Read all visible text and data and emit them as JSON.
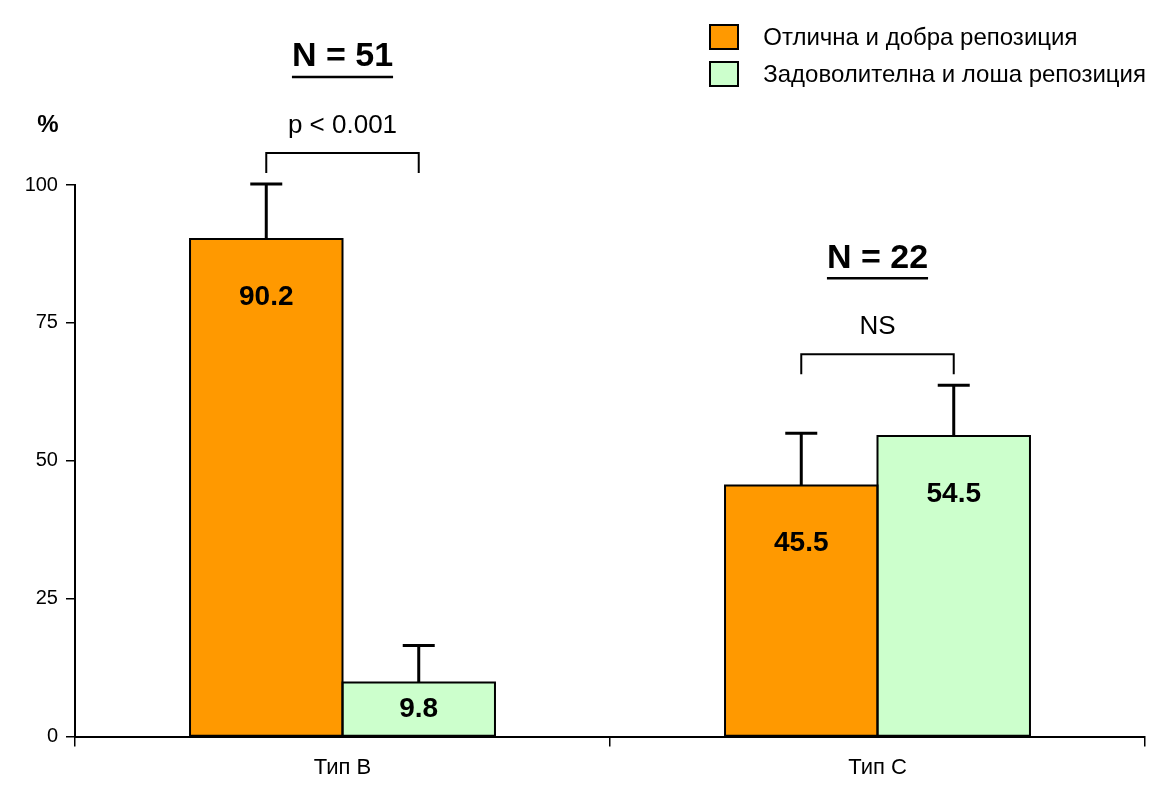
{
  "chart_data": {
    "type": "bar",
    "categories": [
      "Тип B",
      "Тип C"
    ],
    "ylabel": "%",
    "series": [
      {
        "name": "Отлична и добра репозиция",
        "color": "#ff9900",
        "values": [
          90.2,
          45.5
        ],
        "errors": [
          [
            90.2,
            100.2
          ],
          [
            45.5,
            55
          ]
        ]
      },
      {
        "name": "Задоволителна и лоша репозиция",
        "color": "#ccffcc",
        "values": [
          9.8,
          54.5
        ],
        "errors": [
          [
            9.8,
            16.5
          ],
          [
            54.5,
            63.7
          ]
        ]
      }
    ],
    "ylim": [
      0,
      100
    ],
    "yticks": [
      0,
      25,
      50,
      75,
      100
    ],
    "grid": false,
    "legend": "top right",
    "data_labels": true,
    "annotations": [
      "N = 51",
      "p < 0.001",
      "N = 22",
      "NS"
    ]
  }
}
